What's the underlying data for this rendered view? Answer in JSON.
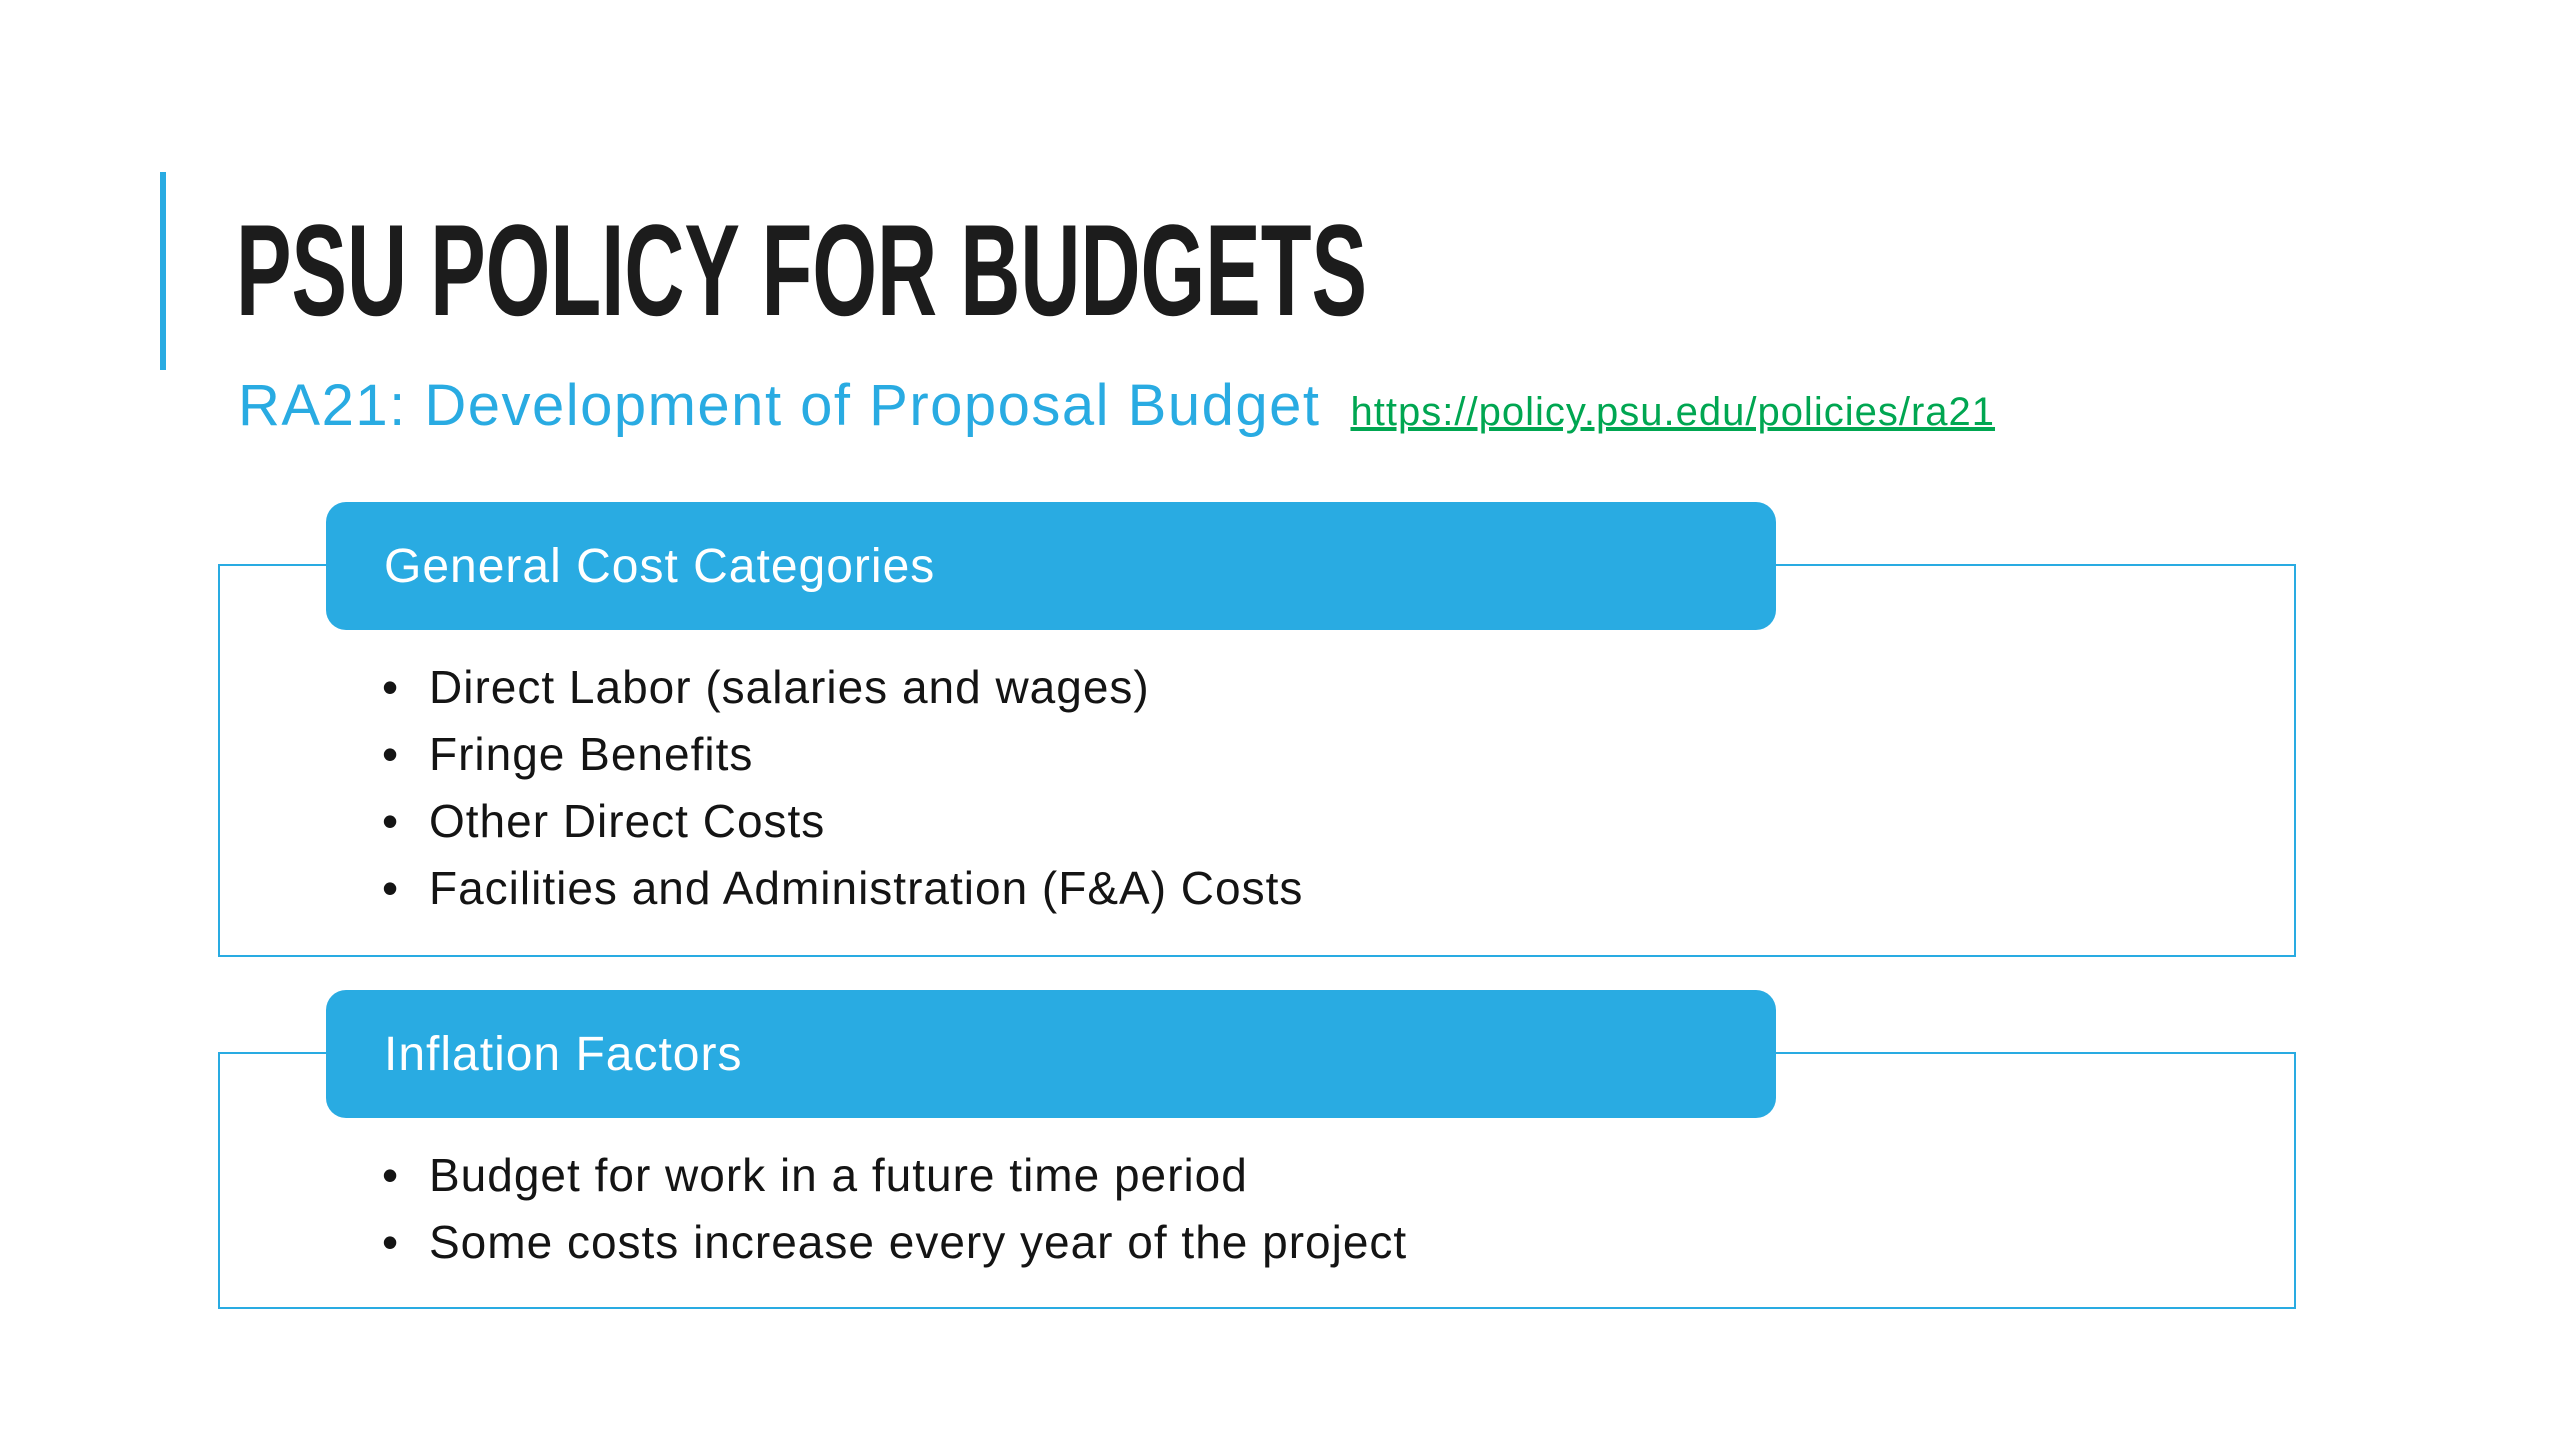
{
  "slide": {
    "title": "PSU POLICY FOR BUDGETS",
    "subtitle": "RA21: Development of Proposal Budget",
    "link": "https://policy.psu.edu/policies/ra21",
    "colors": {
      "accent_blue": "#29ABE2",
      "link_green": "#00A651",
      "title_dark": "#1C1C1C",
      "body_text": "#141414"
    },
    "sections": [
      {
        "header": "General Cost Categories",
        "bullets": [
          "Direct Labor (salaries and wages)",
          "Fringe Benefits",
          "Other Direct Costs",
          "Facilities and Administration (F&A) Costs"
        ]
      },
      {
        "header": "Inflation Factors",
        "bullets": [
          "Budget for work in a future time period",
          "Some costs increase every year of the project"
        ]
      }
    ]
  }
}
